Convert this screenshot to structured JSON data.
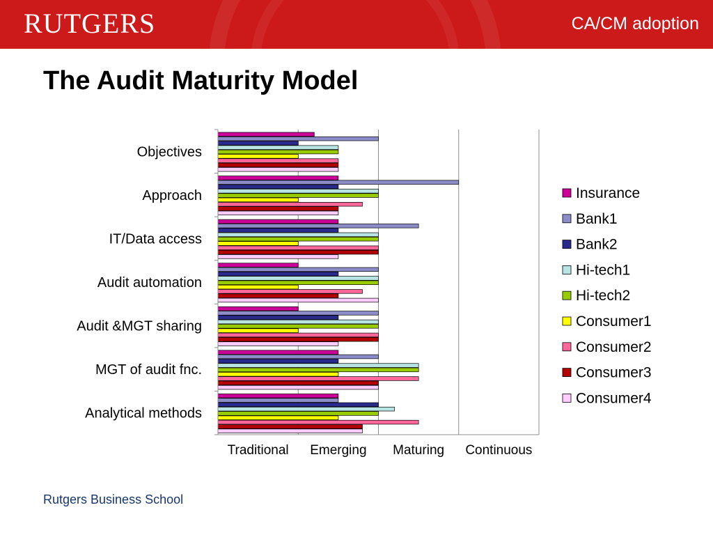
{
  "header": {
    "logo_text": "RUTGERS",
    "title": "CA/CM adoption"
  },
  "slide": {
    "title": "The Audit Maturity Model",
    "footer": "Rutgers Business School"
  },
  "chart_data": {
    "type": "bar",
    "orientation": "horizontal",
    "title": "",
    "xlabel": "",
    "ylabel": "",
    "xlim": [
      0,
      4
    ],
    "grid": true,
    "legend_position": "right",
    "x_tick_labels": [
      "Traditional",
      "Emerging",
      "Maturing",
      "Continuous"
    ],
    "categories": [
      "Objectives",
      "Approach",
      "IT/Data access",
      "Audit automation",
      "Audit &MGT sharing",
      "MGT of audit fnc.",
      "Analytical methods"
    ],
    "series": [
      {
        "name": "Insurance",
        "color": "#cc0099",
        "values": [
          1.2,
          1.5,
          1.5,
          1.0,
          1.0,
          1.5,
          1.5
        ]
      },
      {
        "name": "Bank1",
        "color": "#8c8cc8",
        "values": [
          2.0,
          3.0,
          2.5,
          2.0,
          2.0,
          2.0,
          1.5
        ]
      },
      {
        "name": "Bank2",
        "color": "#2a2a8c",
        "values": [
          1.0,
          1.5,
          1.5,
          1.5,
          1.5,
          1.5,
          2.0
        ]
      },
      {
        "name": "Hi-tech1",
        "color": "#b8e4e4",
        "values": [
          1.5,
          2.0,
          2.0,
          2.0,
          2.0,
          2.5,
          2.2
        ]
      },
      {
        "name": "Hi-tech2",
        "color": "#99cc00",
        "values": [
          1.5,
          2.0,
          2.0,
          2.0,
          2.0,
          2.5,
          2.0
        ]
      },
      {
        "name": "Consumer1",
        "color": "#ffff00",
        "values": [
          1.0,
          1.0,
          1.0,
          1.0,
          1.0,
          1.5,
          1.5
        ]
      },
      {
        "name": "Consumer2",
        "color": "#ff6699",
        "values": [
          1.5,
          1.8,
          2.0,
          1.8,
          2.0,
          2.5,
          2.5
        ]
      },
      {
        "name": "Consumer3",
        "color": "#b30000",
        "values": [
          1.5,
          1.5,
          2.0,
          1.5,
          2.0,
          2.0,
          1.8
        ]
      },
      {
        "name": "Consumer4",
        "color": "#ffccff",
        "values": [
          1.5,
          1.5,
          1.5,
          2.0,
          1.5,
          2.0,
          1.8
        ]
      }
    ]
  }
}
